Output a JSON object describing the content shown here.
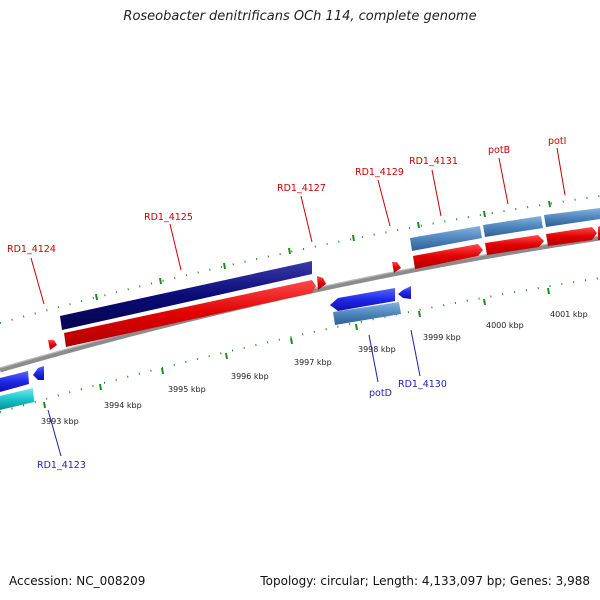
{
  "title": "Roseobacter denitrificans OCh 114, complete genome",
  "footer": {
    "accession": "Accession: NC_008209",
    "summary": "Topology: circular; Length: 4,133,097 bp; Genes: 3,988"
  },
  "colors": {
    "forward_gene": "#e00000",
    "reverse_gene": "#1f28e6",
    "forward_cds": "#0a0a78",
    "steelblue_cds": "#4f86bf",
    "cyan_cds": "#18c6cc",
    "backbone": "#8c8c8c",
    "tick": "#1f8a1f"
  },
  "scale_labels": [
    "3993 kbp",
    "3994 kbp",
    "3995 kbp",
    "3996 kbp",
    "3997 kbp",
    "3998 kbp",
    "3999 kbp",
    "4000 kbp",
    "4001 kbp"
  ],
  "gene_labels": [
    {
      "text": "RD1_4124",
      "strand": "forward"
    },
    {
      "text": "RD1_4125",
      "strand": "forward"
    },
    {
      "text": "RD1_4127",
      "strand": "forward"
    },
    {
      "text": "RD1_4129",
      "strand": "forward"
    },
    {
      "text": "RD1_4131",
      "strand": "forward"
    },
    {
      "text": "potB",
      "strand": "forward"
    },
    {
      "text": "potI",
      "strand": "forward"
    },
    {
      "text": "RD1_4123",
      "strand": "reverse"
    },
    {
      "text": "potD",
      "strand": "reverse"
    },
    {
      "text": "RD1_4130",
      "strand": "reverse"
    }
  ]
}
